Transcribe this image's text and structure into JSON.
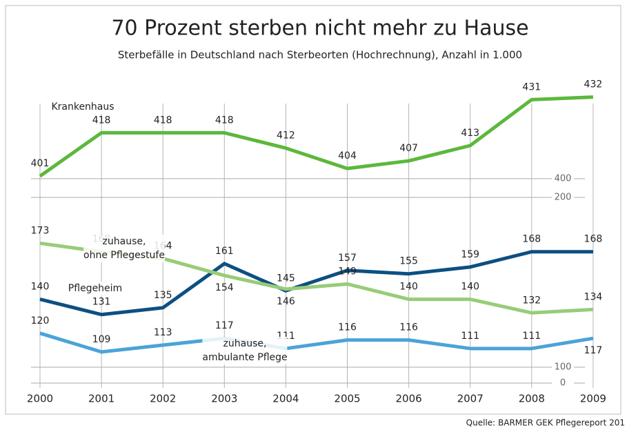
{
  "title": "70 Prozent sterben nicht mehr zu Hause",
  "subtitle": "Sterbefälle in Deutschland nach Sterbeorten (Hochrechnung), Anzahl in 1.000",
  "source": "Quelle: BARMER GEK Pflegereport 201",
  "chart_data": [
    {
      "type": "line",
      "ylim": [
        397,
        443
      ],
      "yticks": [
        400
      ],
      "series": [
        {
          "name": "Krankenhaus",
          "color": "#5cb83c",
          "values": [
            401,
            418,
            418,
            418,
            412,
            404,
            407,
            413,
            431,
            432
          ]
        }
      ]
    },
    {
      "type": "line",
      "ylim": [
        0,
        200
      ],
      "yticks": [
        0,
        100,
        200
      ],
      "categories": [
        "2000",
        "2001",
        "2002",
        "2003",
        "2004",
        "2005",
        "2006",
        "2007",
        "2008",
        "2009"
      ],
      "series": [
        {
          "name": "Pflegeheim",
          "color": "#0d4f82",
          "values": [
            140,
            131,
            135,
            161,
            145,
            157,
            155,
            159,
            168,
            168
          ]
        },
        {
          "name": "zuhause,\nohne Pflegestufe",
          "color": "#98cc78",
          "values": [
            173,
            168,
            164,
            154,
            146,
            149,
            140,
            140,
            132,
            134
          ]
        },
        {
          "name": "zuhause,\nambulante Pflege",
          "color": "#4ba3d8",
          "values": [
            120,
            109,
            113,
            117,
            111,
            116,
            116,
            111,
            111,
            117
          ]
        }
      ]
    }
  ]
}
